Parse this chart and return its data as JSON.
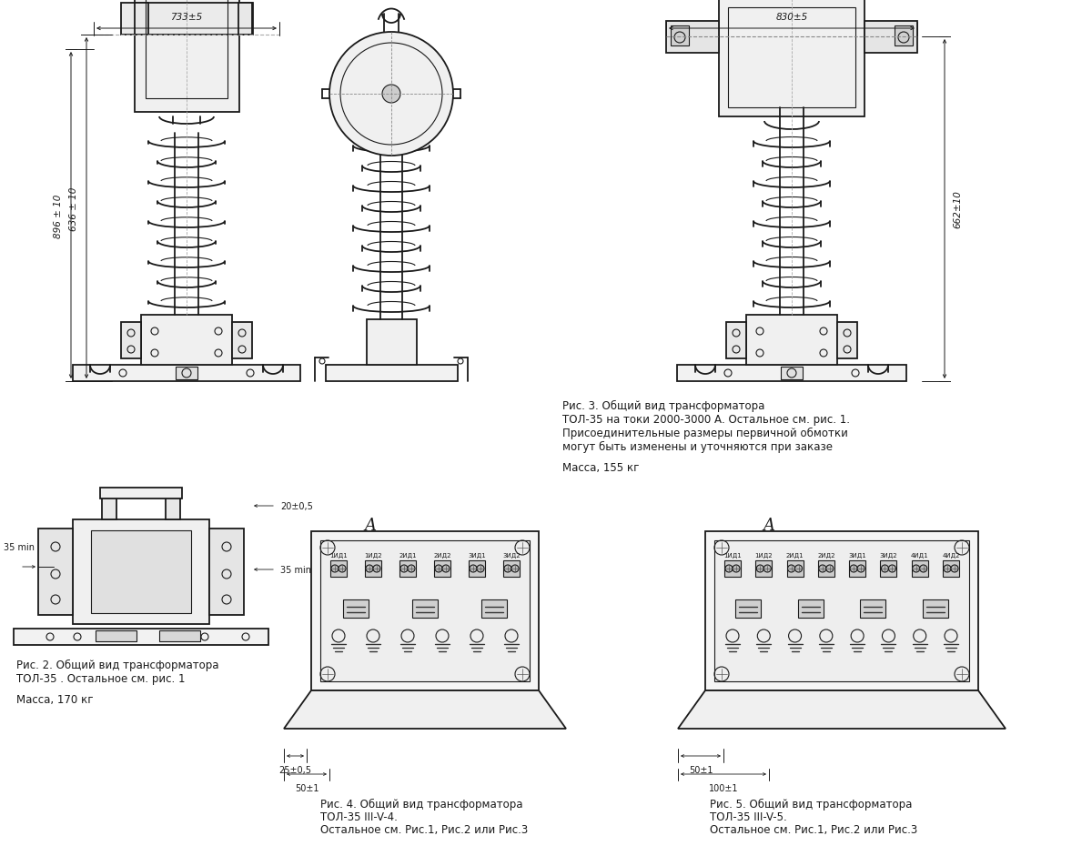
{
  "background_color": "#ffffff",
  "line_color": "#1a1a1a",
  "text_color": "#1a1a1a",
  "fig3_caption_line1": "Рис. 3. Общий вид трансформатора",
  "fig3_caption_line2": "ТОЛ-35 на токи 2000-3000 А. Остальное см. рис. 1.",
  "fig3_caption_line3": "Присоединительные размеры первичной обмотки",
  "fig3_caption_line4": "могут быть изменены и уточняются при заказе",
  "fig3_mass": "Масса, 155 кг",
  "fig2_caption_line1": "Рис. 2. Общий вид трансформатора",
  "fig2_caption_line2": "ТОЛ-35 . Остальное см. рис. 1",
  "fig2_mass": "Масса, 170 кг",
  "fig4_caption_line1": "Рис. 4. Общий вид трансформатора",
  "fig4_caption_line2": "ТОЛ-35 III-V-4.",
  "fig4_caption_line3": "Остальное см. Рис.1, Рис.2 или Рис.3",
  "fig5_caption_line1": "Рис. 5. Общий вид трансформатора",
  "fig5_caption_line2": "ТОЛ-35 III-V-5.",
  "fig5_caption_line3": "Остальное см. Рис.1, Рис.2 или Рис.3",
  "dim_733": "733±5",
  "dim_896": "896 ± 10",
  "dim_636": "636 ± 10",
  "dim_830": "830±5",
  "dim_662": "662±10",
  "dim_35min_1": "35 min",
  "dim_35min_2": "35 min",
  "dim_20": "20±0,5",
  "dim_25": "25±0,5",
  "dim_50_1": "50±1",
  "dim_50_2": "50±1",
  "dim_100": "100±1",
  "label_A1": "A",
  "label_A2": "A",
  "terms4": [
    "1ИД1",
    "1ИД2",
    "2ИД1",
    "2ИД2",
    "3ИД1",
    "3ИД2"
  ],
  "terms5": [
    "1ИД1",
    "1ИД2",
    "2ИД1",
    "2ИД2",
    "3ИД1",
    "3ИД2",
    "4ИД1",
    "4ИД2"
  ]
}
